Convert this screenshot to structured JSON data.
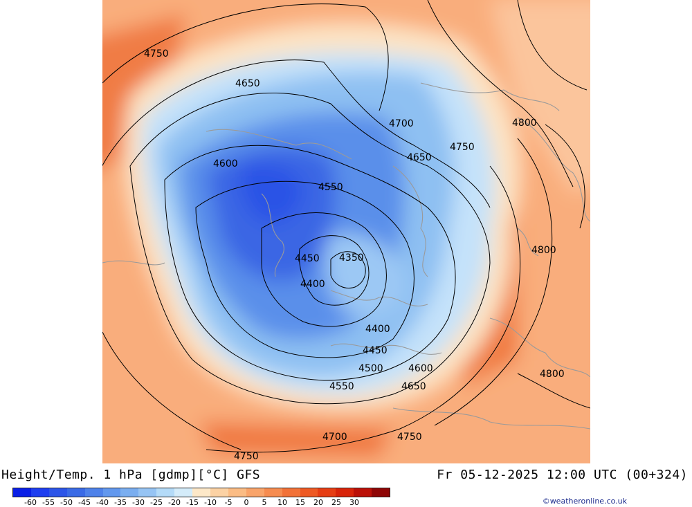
{
  "header": {
    "title_left": "Height/Temp. 1 hPa [gdmp][°C] GFS",
    "title_right": "Fr 05-12-2025 12:00 UTC (00+324)"
  },
  "map": {
    "contour_labels": [
      "4750",
      "4650",
      "4700",
      "4800",
      "4750",
      "4650",
      "4600",
      "4550",
      "4450",
      "4350",
      "4400",
      "4800",
      "4400",
      "4450",
      "4500",
      "4600",
      "4550",
      "4650",
      "4800",
      "4700",
      "4750",
      "4750"
    ]
  },
  "legend": {
    "ticks": [
      "-60",
      "-55",
      "-50",
      "-45",
      "-40",
      "-35",
      "-30",
      "-25",
      "-20",
      "-15",
      "-10",
      "-5",
      "0",
      "5",
      "10",
      "15",
      "20",
      "25",
      "30"
    ],
    "colors": [
      "#0a1fe6",
      "#1e3ef0",
      "#2c55e8",
      "#3a6be6",
      "#4e82ea",
      "#6298ee",
      "#7aaef0",
      "#96c4f4",
      "#b4dbf8",
      "#d4ecfa",
      "#fde8c8",
      "#fcd2a4",
      "#fbbc84",
      "#f9a46a",
      "#f68c50",
      "#f27238",
      "#ee5a24",
      "#e63e14",
      "#d8240a",
      "#bb1008",
      "#8f0606"
    ]
  },
  "footer": {
    "credit": "©weatheronline.co.uk"
  }
}
